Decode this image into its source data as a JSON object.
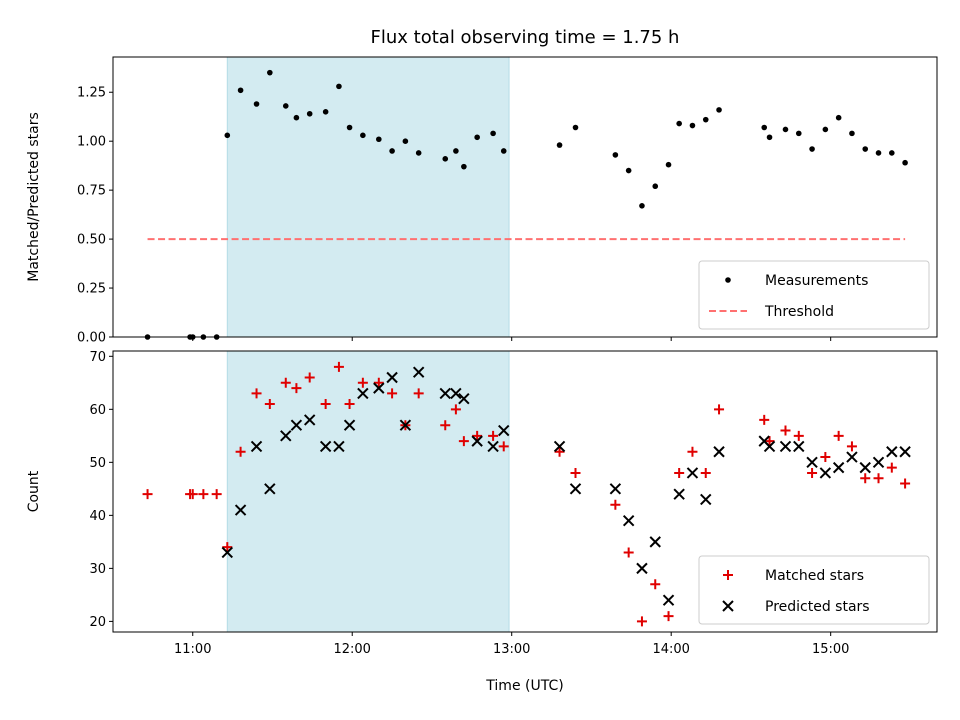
{
  "title": "Flux total observing time = 1.75 h",
  "xlabel": "Time (UTC)",
  "colors": {
    "measurement": "#000000",
    "threshold": "#ff7070",
    "matched": "#e00000",
    "predicted": "#000000",
    "span": "#d3ebf1"
  },
  "chart_data": [
    {
      "type": "scatter",
      "ylabel": "Matched/Predicted stars",
      "xlim": [
        "10:30",
        "15:40"
      ],
      "ylim": [
        0,
        1.43
      ],
      "x_ticks": [
        "11:00",
        "12:00",
        "13:00",
        "14:00",
        "15:00"
      ],
      "y_ticks": [
        "0.00",
        "0.25",
        "0.50",
        "0.75",
        "1.00",
        "1.25"
      ],
      "shaded_span": [
        "11:13",
        "12:59"
      ],
      "legend": "lower-right",
      "series": [
        {
          "name": "Measurements",
          "marker": "dot",
          "points": [
            [
              "10:43",
              0.0
            ],
            [
              "10:59",
              0.0
            ],
            [
              "11:00",
              0.0
            ],
            [
              "11:04",
              0.0
            ],
            [
              "11:09",
              0.0
            ],
            [
              "11:13",
              1.03
            ],
            [
              "11:18",
              1.26
            ],
            [
              "11:24",
              1.19
            ],
            [
              "11:29",
              1.35
            ],
            [
              "11:35",
              1.18
            ],
            [
              "11:39",
              1.12
            ],
            [
              "11:44",
              1.14
            ],
            [
              "11:50",
              1.15
            ],
            [
              "11:55",
              1.28
            ],
            [
              "11:59",
              1.07
            ],
            [
              "12:04",
              1.03
            ],
            [
              "12:10",
              1.01
            ],
            [
              "12:15",
              0.95
            ],
            [
              "12:20",
              1.0
            ],
            [
              "12:25",
              0.94
            ],
            [
              "12:35",
              0.91
            ],
            [
              "12:39",
              0.95
            ],
            [
              "12:42",
              0.87
            ],
            [
              "12:47",
              1.02
            ],
            [
              "12:53",
              1.04
            ],
            [
              "12:57",
              0.95
            ],
            [
              "13:18",
              0.98
            ],
            [
              "13:24",
              1.07
            ],
            [
              "13:39",
              0.93
            ],
            [
              "13:44",
              0.85
            ],
            [
              "13:49",
              0.67
            ],
            [
              "13:54",
              0.77
            ],
            [
              "13:59",
              0.88
            ],
            [
              "14:03",
              1.09
            ],
            [
              "14:08",
              1.08
            ],
            [
              "14:13",
              1.11
            ],
            [
              "14:18",
              1.16
            ],
            [
              "14:35",
              1.07
            ],
            [
              "14:37",
              1.02
            ],
            [
              "14:43",
              1.06
            ],
            [
              "14:48",
              1.04
            ],
            [
              "14:53",
              0.96
            ],
            [
              "14:58",
              1.06
            ],
            [
              "15:03",
              1.12
            ],
            [
              "15:08",
              1.04
            ],
            [
              "15:13",
              0.96
            ],
            [
              "15:18",
              0.94
            ],
            [
              "15:23",
              0.94
            ],
            [
              "15:28",
              0.89
            ]
          ]
        },
        {
          "name": "Threshold",
          "marker": "dashed-line",
          "points": [
            [
              "10:43",
              0.5
            ],
            [
              "15:28",
              0.5
            ]
          ]
        }
      ]
    },
    {
      "type": "scatter",
      "ylabel": "Count",
      "xlabel": "Time (UTC)",
      "xlim": [
        "10:30",
        "15:40"
      ],
      "ylim": [
        18,
        71
      ],
      "x_ticks": [
        "11:00",
        "12:00",
        "13:00",
        "14:00",
        "15:00"
      ],
      "y_ticks": [
        "20",
        "30",
        "40",
        "50",
        "60",
        "70"
      ],
      "shaded_span": [
        "11:13",
        "12:59"
      ],
      "legend": "lower-right",
      "series": [
        {
          "name": "Matched stars",
          "marker": "plus",
          "points": [
            [
              "10:43",
              44
            ],
            [
              "10:59",
              44
            ],
            [
              "11:00",
              44
            ],
            [
              "11:04",
              44
            ],
            [
              "11:09",
              44
            ],
            [
              "11:13",
              34
            ],
            [
              "11:18",
              52
            ],
            [
              "11:24",
              63
            ],
            [
              "11:29",
              61
            ],
            [
              "11:35",
              65
            ],
            [
              "11:39",
              64
            ],
            [
              "11:44",
              66
            ],
            [
              "11:50",
              61
            ],
            [
              "11:55",
              68
            ],
            [
              "11:59",
              61
            ],
            [
              "12:04",
              65
            ],
            [
              "12:10",
              65
            ],
            [
              "12:15",
              63
            ],
            [
              "12:20",
              57
            ],
            [
              "12:25",
              63
            ],
            [
              "12:35",
              57
            ],
            [
              "12:39",
              60
            ],
            [
              "12:42",
              54
            ],
            [
              "12:47",
              55
            ],
            [
              "12:53",
              55
            ],
            [
              "12:57",
              53
            ],
            [
              "13:18",
              52
            ],
            [
              "13:24",
              48
            ],
            [
              "13:39",
              42
            ],
            [
              "13:44",
              33
            ],
            [
              "13:49",
              20
            ],
            [
              "13:54",
              27
            ],
            [
              "13:59",
              21
            ],
            [
              "14:03",
              48
            ],
            [
              "14:08",
              52
            ],
            [
              "14:13",
              48
            ],
            [
              "14:18",
              60
            ],
            [
              "14:35",
              58
            ],
            [
              "14:37",
              54
            ],
            [
              "14:43",
              56
            ],
            [
              "14:48",
              55
            ],
            [
              "14:53",
              48
            ],
            [
              "14:58",
              51
            ],
            [
              "15:03",
              55
            ],
            [
              "15:08",
              53
            ],
            [
              "15:13",
              47
            ],
            [
              "15:18",
              47
            ],
            [
              "15:23",
              49
            ],
            [
              "15:28",
              46
            ]
          ]
        },
        {
          "name": "Predicted stars",
          "marker": "x",
          "points": [
            [
              "11:13",
              33
            ],
            [
              "11:18",
              41
            ],
            [
              "11:24",
              53
            ],
            [
              "11:29",
              45
            ],
            [
              "11:35",
              55
            ],
            [
              "11:39",
              57
            ],
            [
              "11:44",
              58
            ],
            [
              "11:50",
              53
            ],
            [
              "11:55",
              53
            ],
            [
              "11:59",
              57
            ],
            [
              "12:04",
              63
            ],
            [
              "12:10",
              64
            ],
            [
              "12:15",
              66
            ],
            [
              "12:20",
              57
            ],
            [
              "12:25",
              67
            ],
            [
              "12:35",
              63
            ],
            [
              "12:39",
              63
            ],
            [
              "12:42",
              62
            ],
            [
              "12:47",
              54
            ],
            [
              "12:53",
              53
            ],
            [
              "12:57",
              56
            ],
            [
              "13:18",
              53
            ],
            [
              "13:24",
              45
            ],
            [
              "13:39",
              45
            ],
            [
              "13:44",
              39
            ],
            [
              "13:49",
              30
            ],
            [
              "13:54",
              35
            ],
            [
              "13:59",
              24
            ],
            [
              "14:03",
              44
            ],
            [
              "14:08",
              48
            ],
            [
              "14:13",
              43
            ],
            [
              "14:18",
              52
            ],
            [
              "14:35",
              54
            ],
            [
              "14:37",
              53
            ],
            [
              "14:43",
              53
            ],
            [
              "14:48",
              53
            ],
            [
              "14:53",
              50
            ],
            [
              "14:58",
              48
            ],
            [
              "15:03",
              49
            ],
            [
              "15:08",
              51
            ],
            [
              "15:13",
              49
            ],
            [
              "15:18",
              50
            ],
            [
              "15:23",
              52
            ],
            [
              "15:28",
              52
            ]
          ]
        }
      ]
    }
  ]
}
